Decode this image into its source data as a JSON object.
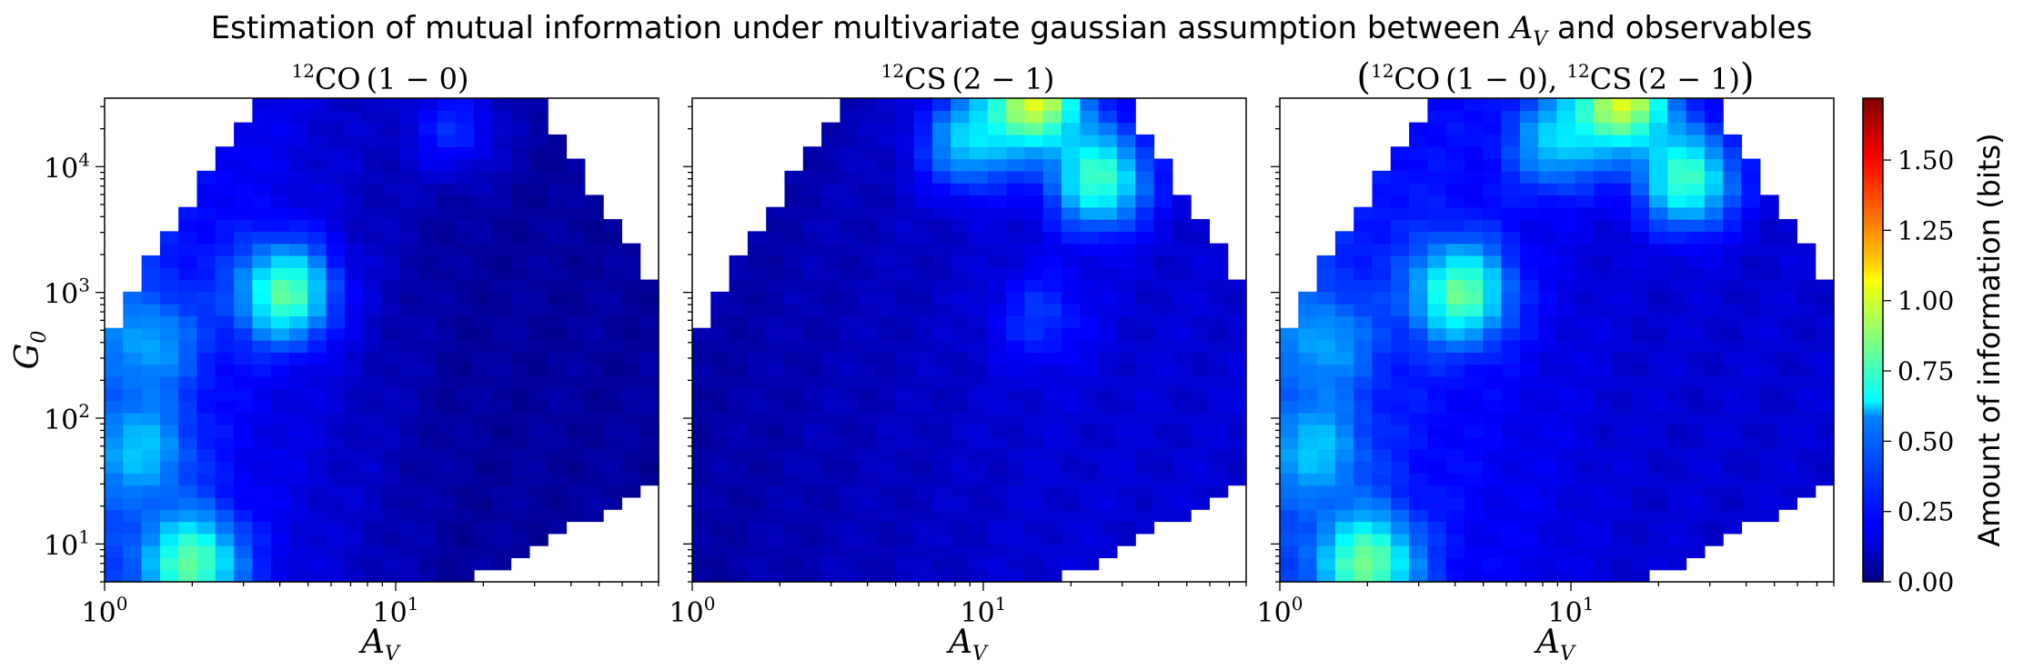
{
  "figure": {
    "title_prefix": "Estimation of mutual information under multivariate gaussian assumption between ",
    "title_var_main": "A",
    "title_var_sub": "V",
    "title_suffix": " and observables"
  },
  "chart_data": [
    {
      "type": "heatmap",
      "panel": "co",
      "title": {
        "prefix": "",
        "sup": "12",
        "species": "CO",
        "transition": "(1 − 0)",
        "suffix": ""
      },
      "xlabel": {
        "main": "A",
        "sub": "V"
      },
      "ylabel": {
        "main": "G",
        "sub": "0"
      },
      "xscale": "log",
      "yscale": "log",
      "xlim": [
        1,
        80
      ],
      "ylim": [
        5,
        35000
      ],
      "x_tick_labels": [
        {
          "base": "10",
          "exp": "0"
        },
        {
          "base": "10",
          "exp": "1"
        }
      ],
      "y_tick_labels": [
        {
          "base": "10",
          "exp": "1"
        },
        {
          "base": "10",
          "exp": "2"
        },
        {
          "base": "10",
          "exp": "3"
        },
        {
          "base": "10",
          "exp": "4"
        }
      ],
      "hotspots": [
        {
          "log10_av": 0.3,
          "log10_g0": 0.85,
          "value": 0.82
        },
        {
          "log10_av": 0.62,
          "log10_g0": 3.0,
          "value": 0.8
        },
        {
          "log10_av": 0.12,
          "log10_g0": 1.75,
          "value": 0.55
        },
        {
          "log10_av": 0.15,
          "log10_g0": 2.6,
          "value": 0.5
        },
        {
          "log10_av": 1.2,
          "log10_g0": 4.3,
          "value": 0.28
        }
      ],
      "baseline": {
        "low_av": 0.3,
        "high_av": 0.05
      }
    },
    {
      "type": "heatmap",
      "panel": "cs",
      "title": {
        "prefix": "",
        "sup": "12",
        "species": "CS",
        "transition": "(2 − 1)",
        "suffix": ""
      },
      "xlabel": {
        "main": "A",
        "sub": "V"
      },
      "xscale": "log",
      "yscale": "log",
      "xlim": [
        1,
        80
      ],
      "ylim": [
        5,
        35000
      ],
      "x_tick_labels": [
        {
          "base": "10",
          "exp": "0"
        },
        {
          "base": "10",
          "exp": "1"
        }
      ],
      "hotspots": [
        {
          "log10_av": 1.18,
          "log10_g0": 4.55,
          "value": 1.0
        },
        {
          "log10_av": 1.4,
          "log10_g0": 3.9,
          "value": 0.75
        },
        {
          "log10_av": 0.95,
          "log10_g0": 4.2,
          "value": 0.55
        },
        {
          "log10_av": 1.2,
          "log10_g0": 2.8,
          "value": 0.3
        }
      ],
      "baseline": {
        "low_av": 0.06,
        "high_av": 0.14
      }
    },
    {
      "type": "heatmap",
      "panel": "joint",
      "title": {
        "prefix": "(",
        "sup": "12",
        "species": "CO",
        "transition": "(1 − 0), ",
        "sup2": "12",
        "species2": "CS",
        "transition2": "(2 − 1)",
        "suffix": ")"
      },
      "xlabel": {
        "main": "A",
        "sub": "V"
      },
      "xscale": "log",
      "yscale": "log",
      "xlim": [
        1,
        80
      ],
      "ylim": [
        5,
        35000
      ],
      "x_tick_labels": [
        {
          "base": "10",
          "exp": "0"
        },
        {
          "base": "10",
          "exp": "1"
        }
      ],
      "hotspots": [
        {
          "log10_av": 0.3,
          "log10_g0": 0.85,
          "value": 0.85
        },
        {
          "log10_av": 0.62,
          "log10_g0": 3.0,
          "value": 0.82
        },
        {
          "log10_av": 0.12,
          "log10_g0": 1.75,
          "value": 0.55
        },
        {
          "log10_av": 0.15,
          "log10_g0": 2.6,
          "value": 0.5
        },
        {
          "log10_av": 1.18,
          "log10_g0": 4.55,
          "value": 1.0
        },
        {
          "log10_av": 1.4,
          "log10_g0": 3.9,
          "value": 0.75
        },
        {
          "log10_av": 0.95,
          "log10_g0": 4.2,
          "value": 0.55
        }
      ],
      "baseline": {
        "low_av": 0.3,
        "high_av": 0.14
      }
    }
  ],
  "colorbar": {
    "label": "Amount of information (bits)",
    "colormap": "jet",
    "range": [
      0,
      1.72
    ],
    "ticks": [
      "0.00",
      "0.25",
      "0.50",
      "0.75",
      "1.00",
      "1.25",
      "1.50"
    ]
  }
}
